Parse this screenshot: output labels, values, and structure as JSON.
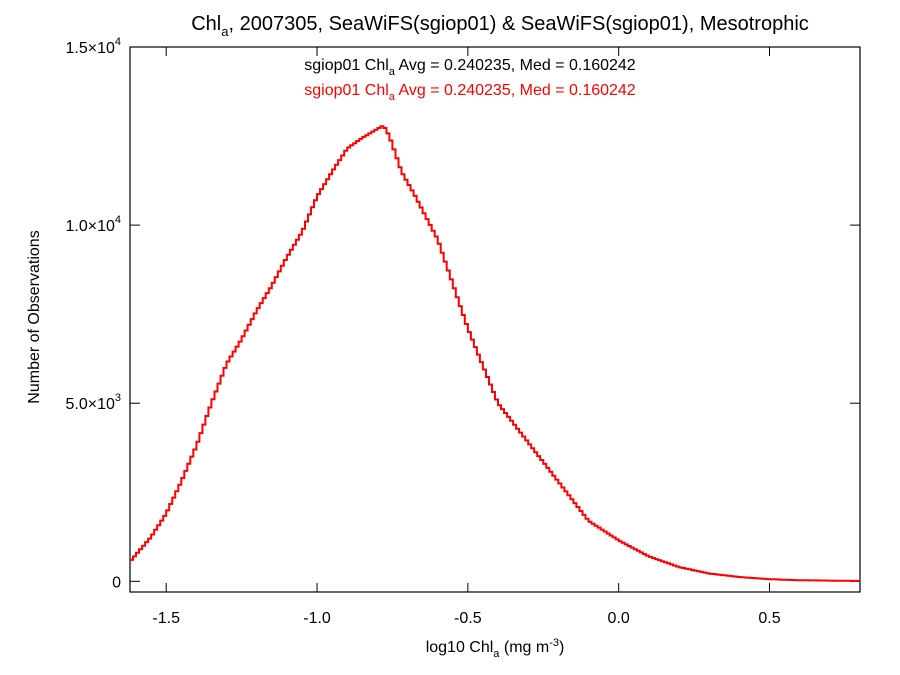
{
  "chart_data": {
    "type": "line",
    "style": "step-histogram",
    "title": {
      "pre": "Chl",
      "sub": "a",
      "post": ", 2007305, SeaWiFS(sgiop01) & SeaWiFS(sgiop01), Mesotrophic"
    },
    "xlabel": {
      "pre": "log10 Chl",
      "sub": "a",
      "mid": " (mg m",
      "sup": "-3",
      "post": ")"
    },
    "ylabel": "Number of Observations",
    "xlim": [
      -1.62,
      0.8
    ],
    "ylim": [
      -300,
      15000
    ],
    "xticks": [
      {
        "value": -1.5,
        "label": "-1.5"
      },
      {
        "value": -1.0,
        "label": "-1.0"
      },
      {
        "value": -0.5,
        "label": "-0.5"
      },
      {
        "value": 0.0,
        "label": "0.0"
      },
      {
        "value": 0.5,
        "label": "0.5"
      }
    ],
    "yticks": [
      {
        "value": 0,
        "mant": "0",
        "exp": ""
      },
      {
        "value": 5000,
        "mant": "5.0×10",
        "exp": "3"
      },
      {
        "value": 10000,
        "mant": "1.0×10",
        "exp": "4"
      },
      {
        "value": 15000,
        "mant": "1.5×10",
        "exp": "4"
      }
    ],
    "grid": false,
    "legend_placement": "top-center",
    "legend": [
      {
        "pre": "sgiop01 Chl",
        "sub": "a",
        "post": " Avg = 0.240235, Med = 0.160242",
        "color": "#000000"
      },
      {
        "pre": "sgiop01 Chl",
        "sub": "a",
        "post": " Avg = 0.240235, Med = 0.160242",
        "color": "#ff0000"
      }
    ],
    "series": [
      {
        "color": "#ff0000",
        "x": [
          -1.62,
          -1.55,
          -1.5,
          -1.45,
          -1.4,
          -1.35,
          -1.3,
          -1.25,
          -1.2,
          -1.15,
          -1.1,
          -1.05,
          -1.0,
          -0.95,
          -0.9,
          -0.85,
          -0.82,
          -0.78,
          -0.76,
          -0.72,
          -0.68,
          -0.6,
          -0.5,
          -0.4,
          -0.3,
          -0.2,
          -0.1,
          0.0,
          0.1,
          0.2,
          0.3,
          0.4,
          0.5,
          0.6,
          0.7,
          0.8
        ],
        "y": [
          550,
          1250,
          1900,
          2800,
          3800,
          5000,
          6100,
          6800,
          7600,
          8300,
          9100,
          9800,
          10800,
          11500,
          12150,
          12450,
          12600,
          12800,
          12500,
          11500,
          10900,
          9600,
          7100,
          5000,
          3900,
          2800,
          1700,
          1150,
          700,
          400,
          220,
          120,
          60,
          30,
          20,
          10
        ]
      }
    ]
  }
}
